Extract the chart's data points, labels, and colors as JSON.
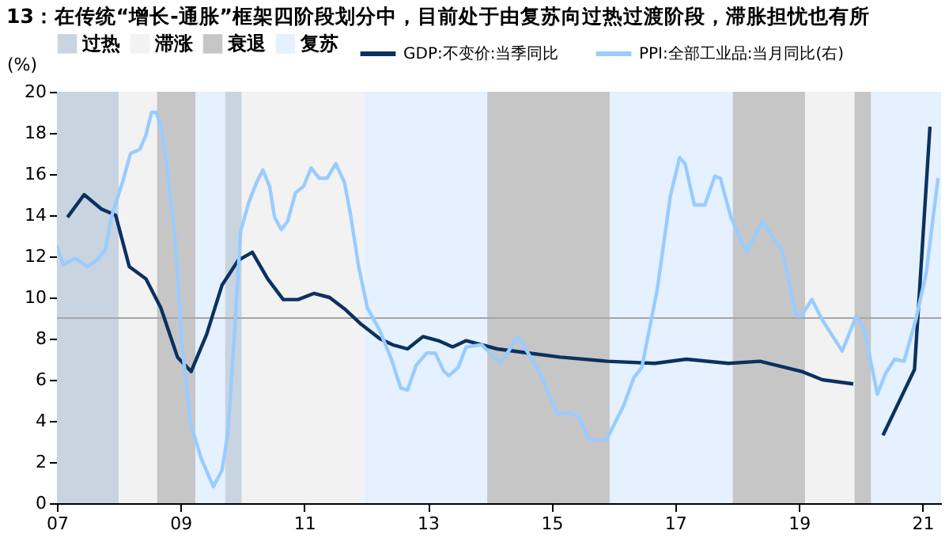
{
  "chart_data": {
    "type": "line",
    "title": "13：在传统“增长-通胀”框架四阶段划分中，目前处于由复苏向过热过渡阶段，滞胀担忧也有所",
    "ylabel": "(%)",
    "xlim": [
      2007,
      2021.3
    ],
    "xticks": [
      {
        "value": 2007,
        "label": "07"
      },
      {
        "value": 2009,
        "label": "09"
      },
      {
        "value": 2011,
        "label": "11"
      },
      {
        "value": 2013,
        "label": "13"
      },
      {
        "value": 2015,
        "label": "15"
      },
      {
        "value": 2017,
        "label": "17"
      },
      {
        "value": 2019,
        "label": "19"
      },
      {
        "value": 2021,
        "label": "21"
      }
    ],
    "ylim": [
      0,
      20
    ],
    "yticks": [
      0,
      2,
      4,
      6,
      8,
      10,
      12,
      14,
      16,
      18,
      20
    ],
    "grid": false,
    "legend": "top",
    "series": [
      {
        "name": "GDP:不变价:当季同比",
        "color": "#0c3160",
        "x": [
          2007.17,
          2007.44,
          2007.72,
          2007.95,
          2008.17,
          2008.44,
          2008.68,
          2008.95,
          2009.17,
          2009.42,
          2009.67,
          2009.93,
          2010.16,
          2010.41,
          2010.66,
          2010.9,
          2011.16,
          2011.41,
          2011.67,
          2011.92,
          2012.22,
          2012.43,
          2012.67,
          2012.92,
          2013.17,
          2013.4,
          2013.62,
          2014.12,
          2014.63,
          2015.14,
          2015.9,
          2016.67,
          2017.18,
          2017.86,
          2018.37,
          2019.05,
          2019.38,
          2019.88,
          2020.1,
          2020.36,
          2020.87,
          2021.12
        ],
        "values": [
          13.9,
          15.0,
          14.3,
          14.0,
          11.5,
          10.9,
          9.5,
          7.1,
          6.4,
          8.2,
          10.6,
          11.8,
          12.2,
          10.9,
          9.9,
          9.9,
          10.2,
          10.0,
          9.4,
          8.7,
          8.0,
          7.7,
          7.5,
          8.1,
          7.9,
          7.6,
          7.9,
          7.5,
          7.3,
          7.1,
          6.9,
          6.8,
          7.0,
          6.8,
          6.9,
          6.4,
          6.0,
          5.8,
          null,
          3.3,
          6.5,
          18.3
        ]
      },
      {
        "name": "PPI:全部工业品:当月同比(右)",
        "color": "#99ccff",
        "x": [
          2007.0,
          2007.1,
          2007.3,
          2007.49,
          2007.64,
          2007.78,
          2007.89,
          2008.06,
          2008.19,
          2008.34,
          2008.44,
          2008.53,
          2008.61,
          2008.7,
          2008.78,
          2008.91,
          2009.02,
          2009.16,
          2009.33,
          2009.53,
          2009.67,
          2009.76,
          2009.87,
          2009.97,
          2010.1,
          2010.23,
          2010.33,
          2010.44,
          2010.52,
          2010.63,
          2010.73,
          2010.86,
          2010.99,
          2011.11,
          2011.24,
          2011.37,
          2011.51,
          2011.65,
          2011.75,
          2011.88,
          2012.02,
          2012.22,
          2012.41,
          2012.56,
          2012.67,
          2012.81,
          2012.98,
          2013.12,
          2013.26,
          2013.34,
          2013.49,
          2013.62,
          2013.87,
          2014.17,
          2014.46,
          2014.8,
          2015.1,
          2015.27,
          2015.44,
          2015.61,
          2015.89,
          2016.16,
          2016.33,
          2016.46,
          2016.71,
          2016.92,
          2017.07,
          2017.16,
          2017.31,
          2017.48,
          2017.64,
          2017.73,
          2017.9,
          2018.15,
          2018.41,
          2018.58,
          2018.73,
          2018.96,
          2019.04,
          2019.21,
          2019.38,
          2019.7,
          2019.93,
          2020.06,
          2020.27,
          2020.4,
          2020.55,
          2020.7,
          2020.89,
          2021.06,
          2021.25
        ],
        "values": [
          12.5,
          11.6,
          11.9,
          11.5,
          11.8,
          12.3,
          14.0,
          15.6,
          17.0,
          17.2,
          17.9,
          19.0,
          19.0,
          18.1,
          16.3,
          12.9,
          7.8,
          3.9,
          2.2,
          0.8,
          1.6,
          3.3,
          8.1,
          13.2,
          14.6,
          15.6,
          16.2,
          15.4,
          13.9,
          13.3,
          13.7,
          15.1,
          15.4,
          16.3,
          15.8,
          15.8,
          16.5,
          15.6,
          14.0,
          11.5,
          9.5,
          8.4,
          7.0,
          5.6,
          5.5,
          6.7,
          7.3,
          7.3,
          6.4,
          6.2,
          6.6,
          7.6,
          7.7,
          6.8,
          8.1,
          6.4,
          4.3,
          4.4,
          4.2,
          3.1,
          3.1,
          4.7,
          6.1,
          6.6,
          10.4,
          14.9,
          16.8,
          16.5,
          14.5,
          14.5,
          15.9,
          15.8,
          13.9,
          12.2,
          13.7,
          12.9,
          12.3,
          9.1,
          9.1,
          9.9,
          8.9,
          7.4,
          9.1,
          8.4,
          5.3,
          6.3,
          7.0,
          6.9,
          8.9,
          11.2,
          15.8
        ]
      }
    ],
    "ref_lines": [
      {
        "axis": "y",
        "value": 9,
        "color": "#a6a6a6"
      }
    ],
    "bands": [
      {
        "axis": "x",
        "from": 2007.0,
        "to": 2008.0,
        "label": "过热",
        "color": "#c8d4e0"
      },
      {
        "axis": "x",
        "from": 2008.0,
        "to": 2008.62,
        "label": "滞涨",
        "color": "#f2f2f2"
      },
      {
        "axis": "x",
        "from": 2008.62,
        "to": 2009.24,
        "label": "衰退",
        "color": "#c6c6c6"
      },
      {
        "axis": "x",
        "from": 2009.24,
        "to": 2009.72,
        "label": "复苏",
        "color": "#e5f1ff"
      },
      {
        "axis": "x",
        "from": 2009.72,
        "to": 2009.99,
        "color": "#c8d4e0"
      },
      {
        "axis": "x",
        "from": 2009.99,
        "to": 2011.97,
        "color": "#f2f2f2"
      },
      {
        "axis": "x",
        "from": 2011.97,
        "to": 2013.96,
        "color": "#e5f1ff"
      },
      {
        "axis": "x",
        "from": 2013.96,
        "to": 2015.94,
        "color": "#c6c6c6"
      },
      {
        "axis": "x",
        "from": 2015.94,
        "to": 2017.93,
        "color": "#e5f1ff"
      },
      {
        "axis": "x",
        "from": 2017.93,
        "to": 2019.1,
        "color": "#c6c6c6"
      },
      {
        "axis": "x",
        "from": 2019.1,
        "to": 2019.9,
        "color": "#f2f2f2"
      },
      {
        "axis": "x",
        "from": 2019.9,
        "to": 2020.17,
        "color": "#c6c6c6"
      },
      {
        "axis": "x",
        "from": 2020.17,
        "to": 2021.3,
        "color": "#e5f1ff"
      }
    ]
  }
}
